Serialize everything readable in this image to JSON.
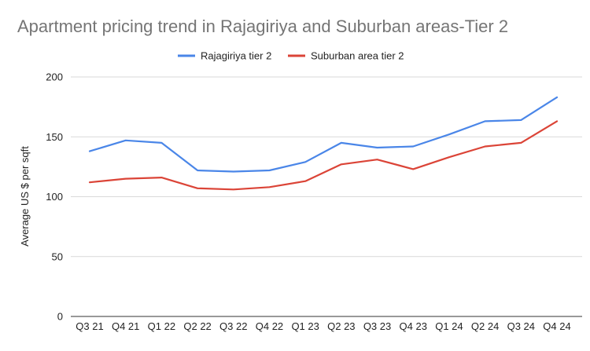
{
  "chart_data": {
    "type": "line",
    "title": "Apartment pricing trend in Rajagiriya and Suburban areas-Tier 2",
    "xlabel": "",
    "ylabel": "Average US $ per sqft",
    "ylim": [
      0,
      200
    ],
    "yticks": [
      0,
      50,
      100,
      150,
      200
    ],
    "grid": true,
    "legend_position": "top",
    "categories": [
      "Q3 21",
      "Q4 21",
      "Q1 22",
      "Q2 22",
      "Q3 22",
      "Q4 22",
      "Q1 23",
      "Q2 23",
      "Q3 23",
      "Q4 23",
      "Q1 24",
      "Q2 24",
      "Q3 24",
      "Q4 24"
    ],
    "series": [
      {
        "name": "Rajagiriya tier 2",
        "color": "#4a86e8",
        "values": [
          138,
          147,
          145,
          122,
          121,
          122,
          129,
          145,
          141,
          142,
          152,
          163,
          164,
          183
        ]
      },
      {
        "name": "Suburban area tier 2",
        "color": "#db4437",
        "values": [
          112,
          115,
          116,
          107,
          106,
          108,
          113,
          127,
          131,
          123,
          133,
          142,
          145,
          163
        ]
      }
    ]
  }
}
